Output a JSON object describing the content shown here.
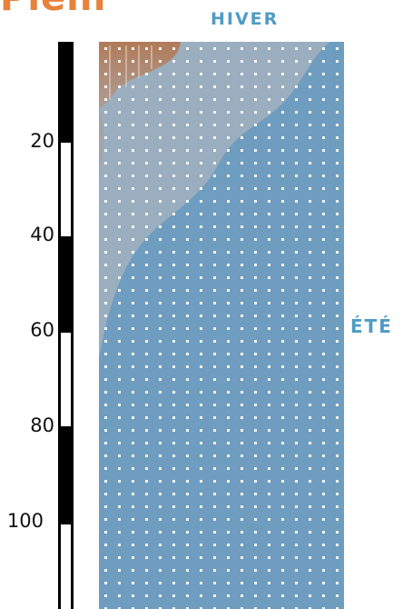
{
  "header": {
    "title_fragment": "Plein"
  },
  "seasons": {
    "winter_label": "HIVER",
    "summer_label": "ÉTÉ"
  },
  "depth_axis": {
    "ticks": [
      "20",
      "40",
      "60",
      "80",
      "100"
    ]
  },
  "colors": {
    "title": "#e8813a",
    "season_label": "#4f9cc4",
    "water_summer": "#6f9dc0",
    "water_winter": "#98aec0",
    "sediment": "#b48466",
    "ruler": "#000000"
  },
  "icons": {
    "dots": "grid-dot-pattern"
  }
}
